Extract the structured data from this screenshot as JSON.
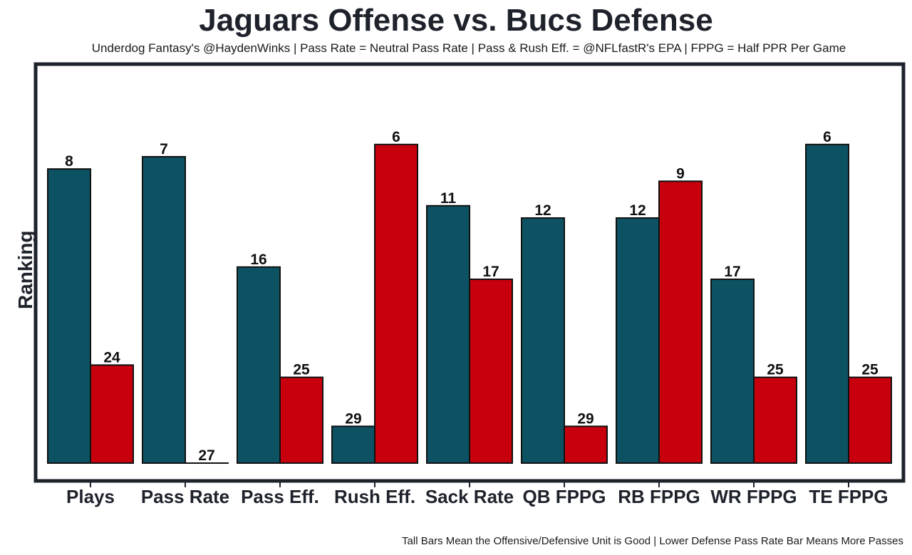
{
  "chart_data": {
    "type": "bar",
    "title": "Jaguars Offense vs. Bucs Defense",
    "subtitle": "Underdog Fantasy's @HaydenWinks | Pass Rate = Neutral Pass Rate | Pass & Rush Eff. = @NFLfastR's EPA | FPPG = Half PPR Per Game",
    "caption": "Tall Bars Mean the Offensive/Defensive Unit is Good | Lower Defense Pass Rate Bar Means More Passes",
    "xlabel": "",
    "ylabel": "Ranking",
    "categories": [
      "Plays",
      "Pass Rate",
      "Pass Eff.",
      "Rush Eff.",
      "Sack Rate",
      "QB FPPG",
      "RB FPPG",
      "WR FPPG",
      "TE FPPG"
    ],
    "series": [
      {
        "name": "Jaguars Offense",
        "color": "#0d5263",
        "ranks": [
          8,
          7,
          16,
          29,
          11,
          12,
          12,
          17,
          6
        ],
        "bar_score": [
          24,
          25,
          16,
          3,
          21,
          20,
          20,
          15,
          26
        ]
      },
      {
        "name": "Bucs Defense",
        "color": "#c8000e",
        "ranks": [
          24,
          27,
          25,
          6,
          17,
          29,
          9,
          25,
          25
        ],
        "bar_score": [
          8,
          0,
          7,
          26,
          15,
          3,
          23,
          7,
          7
        ]
      }
    ],
    "ylim": [
      0,
      28
    ],
    "grid": false,
    "legend": "none"
  }
}
